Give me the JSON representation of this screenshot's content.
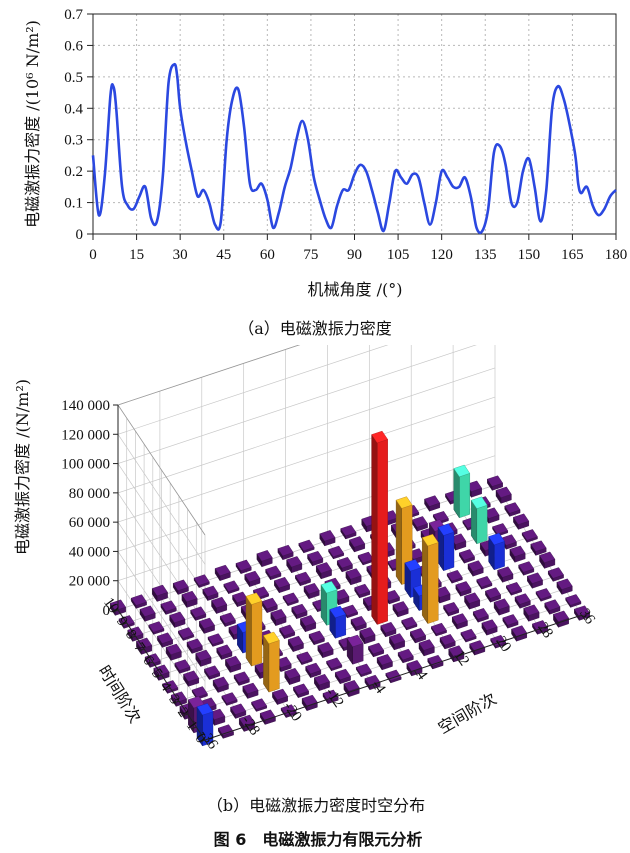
{
  "figure_caption": "图 6　电磁激振力有限元分析",
  "chart_data": [
    {
      "type": "line",
      "caption": "（a）电磁激振力密度",
      "xlabel": "机械角度 /(°)",
      "ylabel": "电磁激振力密度 /(10⁶ N/m²)",
      "xlim": [
        0,
        180
      ],
      "ylim": [
        0,
        0.7
      ],
      "x_ticks": [
        0,
        15,
        30,
        45,
        60,
        75,
        90,
        105,
        120,
        135,
        150,
        165,
        180
      ],
      "y_ticks": [
        0,
        0.1,
        0.2,
        0.3,
        0.4,
        0.5,
        0.6,
        0.7
      ],
      "grid": true,
      "color": "#2b48e0",
      "x": [
        0,
        2,
        4,
        6,
        7,
        8,
        10,
        12,
        14,
        16,
        18,
        20,
        22,
        24,
        26,
        28,
        29,
        30,
        32,
        34,
        36,
        38,
        40,
        42,
        44,
        46,
        48,
        50,
        52,
        54,
        56,
        58,
        60,
        62,
        64,
        66,
        68,
        70,
        72,
        74,
        76,
        78,
        80,
        82,
        84,
        86,
        88,
        90,
        92,
        94,
        96,
        98,
        100,
        102,
        104,
        106,
        108,
        110,
        112,
        114,
        116,
        118,
        120,
        122,
        124,
        126,
        128,
        130,
        132,
        134,
        136,
        138,
        140,
        142,
        144,
        146,
        148,
        150,
        152,
        154,
        156,
        158,
        160,
        162,
        164,
        166,
        167,
        168,
        170,
        172,
        174,
        176,
        178,
        180
      ],
      "y": [
        0.25,
        0.06,
        0.18,
        0.44,
        0.47,
        0.4,
        0.15,
        0.09,
        0.08,
        0.12,
        0.15,
        0.05,
        0.04,
        0.18,
        0.48,
        0.54,
        0.5,
        0.4,
        0.29,
        0.2,
        0.12,
        0.14,
        0.1,
        0.03,
        0.04,
        0.3,
        0.43,
        0.46,
        0.34,
        0.16,
        0.14,
        0.16,
        0.11,
        0.02,
        0.07,
        0.15,
        0.21,
        0.3,
        0.36,
        0.3,
        0.18,
        0.11,
        0.05,
        0.02,
        0.09,
        0.14,
        0.14,
        0.19,
        0.22,
        0.2,
        0.14,
        0.07,
        0.01,
        0.1,
        0.2,
        0.18,
        0.16,
        0.19,
        0.18,
        0.1,
        0.03,
        0.1,
        0.2,
        0.18,
        0.15,
        0.15,
        0.18,
        0.12,
        0.02,
        0.01,
        0.08,
        0.26,
        0.28,
        0.22,
        0.1,
        0.1,
        0.2,
        0.24,
        0.15,
        0.04,
        0.14,
        0.4,
        0.47,
        0.43,
        0.35,
        0.25,
        0.16,
        0.13,
        0.15,
        0.09,
        0.06,
        0.08,
        0.12,
        0.14
      ]
    },
    {
      "type": "bar3d",
      "caption": "（b）电磁激振力密度时空分布",
      "zlabel": "电磁激振力密度 /(N/m²)",
      "xlabel": "空间阶次",
      "ylabel": "时间阶次",
      "x_ticks": [
        -36,
        -28,
        -20,
        -12,
        -4,
        4,
        12,
        20,
        28,
        36
      ],
      "y_ticks": [
        0,
        1,
        2,
        3,
        4,
        5,
        6,
        7,
        8,
        9,
        10
      ],
      "zlim": [
        0,
        140000
      ],
      "z_ticks": [
        0,
        20000,
        40000,
        60000,
        80000,
        100000,
        120000,
        140000
      ],
      "z_tick_labels": [
        "0",
        "20 000",
        "40 000",
        "60 000",
        "80 000",
        "100 000",
        "120 000",
        "140 000"
      ],
      "grid": true,
      "base_color": "#4a1360",
      "bars": [
        {
          "x": -36,
          "y": 0,
          "z": 21000,
          "color": "#1a2fd6"
        },
        {
          "x": -36,
          "y": 1,
          "z": 17000,
          "color": "#5a1a72"
        },
        {
          "x": -20,
          "y": 2,
          "z": 33000,
          "color": "#e39b1f"
        },
        {
          "x": -20,
          "y": 4,
          "z": 42000,
          "color": "#e39b1f"
        },
        {
          "x": -20,
          "y": 5,
          "z": 14000,
          "color": "#1a2fd6"
        },
        {
          "x": -4,
          "y": 2,
          "z": 12000,
          "color": "#5a1a72"
        },
        {
          "x": -4,
          "y": 4,
          "z": 14000,
          "color": "#1a2fd6"
        },
        {
          "x": -4,
          "y": 5,
          "z": 22000,
          "color": "#3fd6a8"
        },
        {
          "x": 4,
          "y": 4,
          "z": 124000,
          "color": "#e51c1c"
        },
        {
          "x": 12,
          "y": 3,
          "z": 53000,
          "color": "#e39b1f"
        },
        {
          "x": 12,
          "y": 4,
          "z": 10000,
          "color": "#1a2fd6"
        },
        {
          "x": 12,
          "y": 5,
          "z": 18000,
          "color": "#1a2fd6"
        },
        {
          "x": 12,
          "y": 6,
          "z": 52000,
          "color": "#e39b1f"
        },
        {
          "x": 20,
          "y": 6,
          "z": 24000,
          "color": "#1a2fd6"
        },
        {
          "x": 20,
          "y": 7,
          "z": 18000,
          "color": "#5a1a72"
        },
        {
          "x": 28,
          "y": 5,
          "z": 17000,
          "color": "#1a2fd6"
        },
        {
          "x": 28,
          "y": 7,
          "z": 24000,
          "color": "#3fd6a8"
        },
        {
          "x": 28,
          "y": 9,
          "z": 28000,
          "color": "#3fd6a8"
        }
      ]
    }
  ]
}
